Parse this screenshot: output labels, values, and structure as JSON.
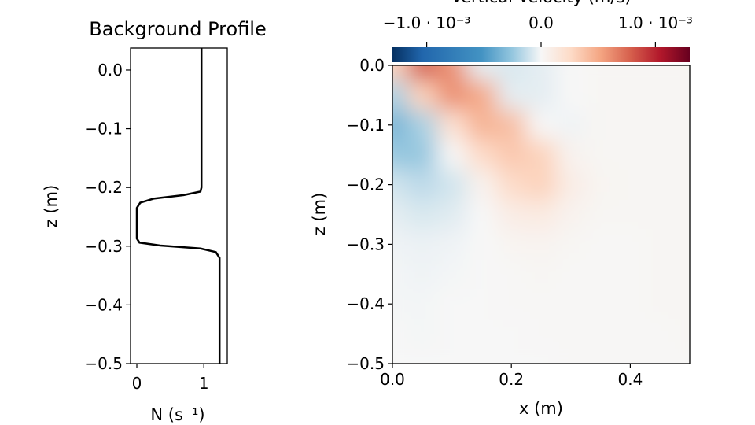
{
  "chart_data": [
    {
      "type": "line",
      "title": "Background Profile",
      "xlabel": "N (s⁻¹)",
      "ylabel": "z (m)",
      "xlim": [
        -0.094,
        1.35
      ],
      "ylim": [
        -0.5,
        0.0375
      ],
      "xticks": [
        0,
        1
      ],
      "xtick_labels": [
        "0",
        "1"
      ],
      "yticks": [
        0.0,
        -0.1,
        -0.2,
        -0.3,
        -0.4,
        -0.5
      ],
      "ytick_labels": [
        "0.0",
        "−0.1",
        "−0.2",
        "−0.3",
        "−0.4",
        "−0.5"
      ],
      "grid": false,
      "series": [
        {
          "color": "#000000",
          "N": [
            0.965,
            0.965,
            0.95,
            0.7,
            0.25,
            0.05,
            0.0,
            0.0,
            0.04,
            0.35,
            0.95,
            1.18,
            1.235,
            1.235
          ],
          "z": [
            0.0375,
            -0.2,
            -0.207,
            -0.213,
            -0.219,
            -0.226,
            -0.235,
            -0.287,
            -0.294,
            -0.299,
            -0.304,
            -0.31,
            -0.32,
            -0.5
          ]
        }
      ]
    },
    {
      "type": "heatmap",
      "title": "",
      "xlabel": "x (m)",
      "ylabel": "z (m)",
      "xlim": [
        0,
        0.5
      ],
      "ylim": [
        -0.5,
        0
      ],
      "xticks": [
        0.0,
        0.2,
        0.4
      ],
      "xtick_labels": [
        "0.0",
        "0.2",
        "0.4"
      ],
      "yticks": [
        0.0,
        -0.1,
        -0.2,
        -0.3,
        -0.4,
        -0.5
      ],
      "ytick_labels": [
        "0.0",
        "−0.1",
        "−0.2",
        "−0.3",
        "−0.4",
        "−0.5"
      ],
      "colormap": "RdBu_r",
      "colorbar": {
        "label": "Vertical Velocity (m/s)",
        "location": "top",
        "vlim": [
          -0.0013,
          0.0013
        ],
        "ticks": [
          -0.001,
          0,
          0.001
        ],
        "tick_labels": [
          "−1.0 · 10⁻³",
          "0.0",
          "1.0 · 10⁻³"
        ]
      },
      "x": [
        0,
        0.05,
        0.1,
        0.15,
        0.2,
        0.25,
        0.3,
        0.35,
        0.4,
        0.45,
        0.5
      ],
      "z": [
        0,
        -0.05,
        -0.1,
        -0.15,
        -0.2,
        -0.25,
        -0.3,
        -0.35,
        -0.4,
        -0.45,
        -0.5
      ],
      "values": [
        [
          0.0003,
          0.0008,
          0.0006,
          -5e-05,
          -8e-05,
          -5e-05,
          0,
          2e-05,
          2e-05,
          2e-05,
          2e-05
        ],
        [
          -0.0002,
          0.0003,
          0.0006,
          0.0005,
          -5e-05,
          -5e-05,
          0,
          2e-05,
          2e-05,
          2e-05,
          2e-05
        ],
        [
          -0.00035,
          -0.0002,
          0.0002,
          0.00045,
          0.0004,
          0.0,
          -2e-05,
          2e-05,
          2e-05,
          2e-05,
          2e-05
        ],
        [
          -0.00025,
          -0.00025,
          0.0,
          0.00025,
          0.00035,
          0.0003,
          5e-05,
          2e-05,
          2e-05,
          2e-05,
          2e-05
        ],
        [
          -0.0001,
          -0.00015,
          -0.0001,
          5e-05,
          0.00025,
          0.0003,
          0.0001,
          3e-05,
          2e-05,
          2e-05,
          2e-05
        ],
        [
          -5e-05,
          -8e-05,
          -6e-05,
          0,
          0.0001,
          0.00012,
          5e-05,
          2e-05,
          2e-05,
          2e-05,
          2e-05
        ],
        [
          -2e-05,
          -3e-05,
          -2e-05,
          0,
          3e-05,
          4e-05,
          2e-05,
          1e-05,
          1e-05,
          2e-05,
          2e-05
        ],
        [
          -1e-05,
          -2e-05,
          -1e-05,
          0,
          1e-05,
          2e-05,
          1e-05,
          1e-05,
          1e-05,
          2e-05,
          2e-05
        ],
        [
          -1e-05,
          -1e-05,
          0,
          0,
          1e-05,
          1e-05,
          1e-05,
          1e-05,
          1e-05,
          2e-05,
          2e-05
        ],
        [
          0,
          -1e-05,
          0,
          0,
          0,
          1e-05,
          1e-05,
          1e-05,
          1e-05,
          1e-05,
          2e-05
        ],
        [
          0,
          0,
          0,
          0,
          0,
          0,
          1e-05,
          1e-05,
          1e-05,
          1e-05,
          1e-05
        ]
      ]
    }
  ]
}
